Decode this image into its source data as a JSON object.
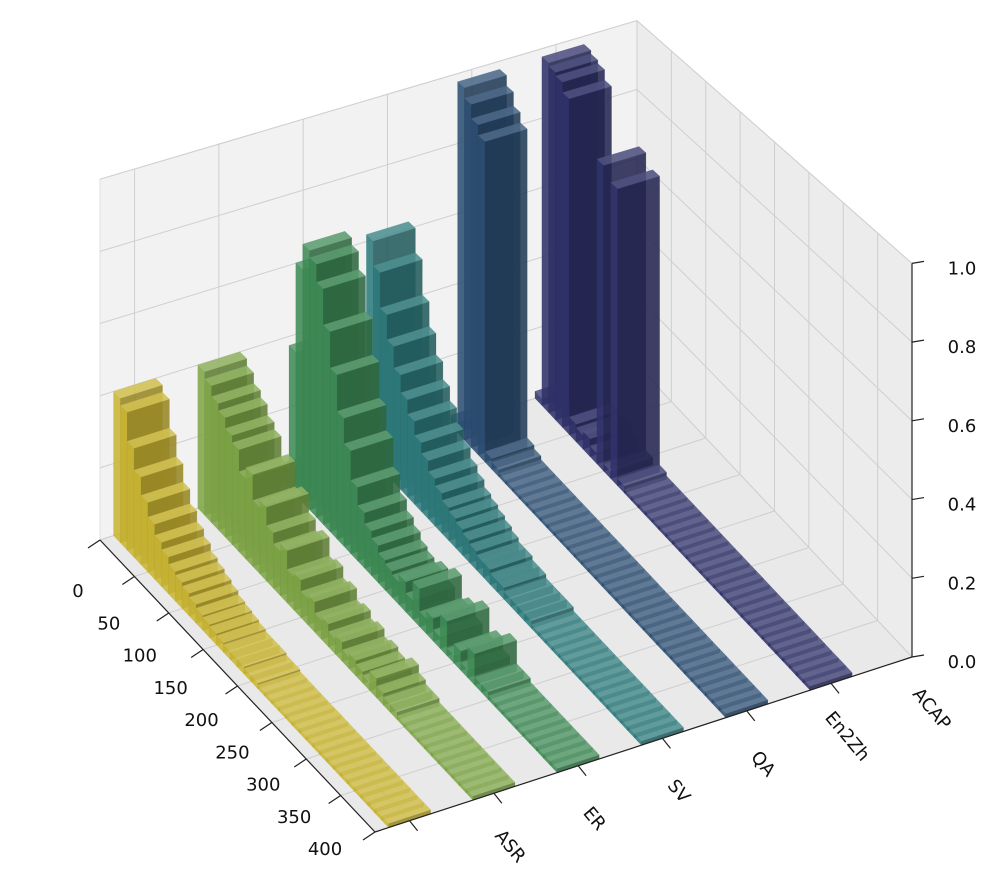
{
  "chart_data": {
    "type": "bar3d",
    "categories": [
      "ASR",
      "ER",
      "SV",
      "QA",
      "En2Zh",
      "ACAP"
    ],
    "x": [
      0,
      10,
      20,
      30,
      40,
      50,
      60,
      70,
      80,
      90,
      100,
      110,
      120,
      130,
      140,
      150,
      160,
      170,
      180,
      190,
      200,
      210,
      220,
      230,
      240,
      250,
      260,
      270,
      280,
      290,
      300,
      310,
      320,
      330,
      340,
      350,
      360,
      370,
      380,
      390
    ],
    "values": [
      [
        0.4,
        0.38,
        0.3,
        0.24,
        0.19,
        0.15,
        0.12,
        0.1,
        0.08,
        0.07,
        0.06,
        0.05,
        0.04,
        0.035,
        0.03,
        0.025,
        0.02,
        0.02,
        0.02,
        0.015,
        0.015,
        0.01,
        0.01,
        0.01,
        0.01,
        0.01,
        0.01,
        0.01,
        0.01,
        0.01,
        0.01,
        0.01,
        0.01,
        0.01,
        0.01,
        0.01,
        0.01,
        0.01,
        0.01,
        0.01
      ],
      [
        0.4,
        0.38,
        0.35,
        0.33,
        0.3,
        0.28,
        0.22,
        0.25,
        0.18,
        0.2,
        0.15,
        0.12,
        0.14,
        0.09,
        0.1,
        0.07,
        0.08,
        0.05,
        0.06,
        0.04,
        0.05,
        0.03,
        0.04,
        0.03,
        0.02,
        0.05,
        0.03,
        0.02,
        0.02,
        0.01,
        0.01,
        0.01,
        0.01,
        0.01,
        0.01,
        0.01,
        0.01,
        0.01,
        0.01,
        0.01
      ],
      [
        0.05,
        0.4,
        0.65,
        0.72,
        0.7,
        0.65,
        0.55,
        0.45,
        0.35,
        0.28,
        0.2,
        0.15,
        0.12,
        0.1,
        0.08,
        0.07,
        0.06,
        0.08,
        0.05,
        0.1,
        0.04,
        0.06,
        0.03,
        0.09,
        0.02,
        0.05,
        0.02,
        0.08,
        0.02,
        0.02,
        0.01,
        0.01,
        0.01,
        0.01,
        0.01,
        0.01,
        0.01,
        0.01,
        0.01,
        0.01
      ],
      [
        0.62,
        0.55,
        0.45,
        0.38,
        0.32,
        0.27,
        0.23,
        0.19,
        0.16,
        0.13,
        0.11,
        0.09,
        0.08,
        0.07,
        0.06,
        0.05,
        0.04,
        0.04,
        0.03,
        0.03,
        0.02,
        0.02,
        0.02,
        0.02,
        0.01,
        0.01,
        0.01,
        0.01,
        0.01,
        0.01,
        0.01,
        0.01,
        0.01,
        0.01,
        0.01,
        0.01,
        0.01,
        0.01,
        0.01,
        0.01
      ],
      [
        0.03,
        1.0,
        0.97,
        0.93,
        0.9,
        0.03,
        0.02,
        0.01,
        0.01,
        0.01,
        0.01,
        0.01,
        0.01,
        0.01,
        0.01,
        0.01,
        0.01,
        0.01,
        0.01,
        0.01,
        0.01,
        0.01,
        0.01,
        0.01,
        0.01,
        0.01,
        0.01,
        0.01,
        0.01,
        0.01,
        0.01,
        0.01,
        0.01,
        0.01,
        0.01,
        0.01,
        0.01,
        0.01,
        0.01,
        0.01
      ],
      [
        0.02,
        1.0,
        0.99,
        0.98,
        0.95,
        0.05,
        0.04,
        0.05,
        0.03,
        0.85,
        0.02,
        0.82,
        0.02,
        0.01,
        0.01,
        0.01,
        0.01,
        0.01,
        0.01,
        0.01,
        0.01,
        0.01,
        0.01,
        0.01,
        0.01,
        0.01,
        0.01,
        0.01,
        0.01,
        0.01,
        0.01,
        0.01,
        0.01,
        0.01,
        0.01,
        0.01,
        0.01,
        0.01,
        0.01,
        0.01
      ]
    ],
    "colors": [
      "#c9b533",
      "#7fa648",
      "#3f8b55",
      "#2f7b7c",
      "#2c4e73",
      "#30326a"
    ],
    "xlim": [
      0,
      400
    ],
    "xticks": [
      0,
      50,
      100,
      150,
      200,
      250,
      300,
      350,
      400
    ],
    "zlim": [
      0,
      1.0
    ],
    "zticks": [
      {
        "value": 0,
        "label": "0.0"
      },
      0.2,
      0.4,
      0.6,
      0.8,
      {
        "value": 1.0,
        "label": "1.0"
      }
    ],
    "grid": true
  }
}
